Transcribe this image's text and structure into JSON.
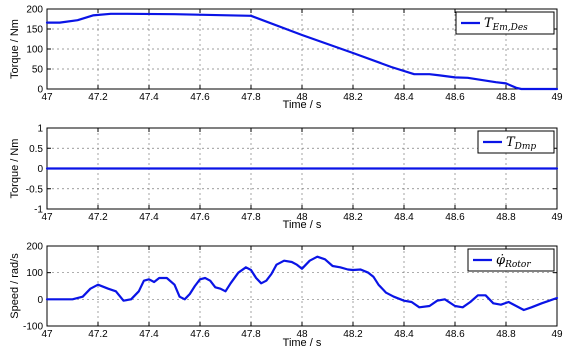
{
  "chart_data": [
    {
      "type": "line",
      "xlabel": "Time / s",
      "ylabel": "Torque / Nm",
      "xlim": [
        47,
        49
      ],
      "ylim": [
        0,
        200
      ],
      "xticks": [
        "47",
        "47.2",
        "47.4",
        "47.6",
        "47.8",
        "48",
        "48.2",
        "48.4",
        "48.6",
        "48.8",
        "49"
      ],
      "yticks": [
        "0",
        "50",
        "100",
        "150",
        "200"
      ],
      "grid": true,
      "legend_position": "top-right",
      "series": [
        {
          "name": "T",
          "name_subscript": "Em,Des",
          "color": "#0a14e6",
          "x": [
            47.0,
            47.05,
            47.12,
            47.18,
            47.25,
            47.3,
            47.5,
            47.8,
            48.0,
            48.2,
            48.35,
            48.44,
            48.5,
            48.54,
            48.6,
            48.65,
            48.7,
            48.76,
            48.8,
            48.84,
            48.86,
            49.0
          ],
          "y": [
            166,
            166,
            172,
            184,
            188,
            188,
            187,
            183,
            135,
            90,
            55,
            37,
            37,
            34,
            29,
            28,
            23,
            17,
            14,
            3,
            0,
            0
          ]
        }
      ]
    },
    {
      "type": "line",
      "xlabel": "Time / s",
      "ylabel": "Torque / Nm",
      "xlim": [
        47,
        49
      ],
      "ylim": [
        -1,
        1
      ],
      "xticks": [
        "47",
        "47.2",
        "47.4",
        "47.6",
        "47.8",
        "48",
        "48.2",
        "48.4",
        "48.6",
        "48.8",
        "49"
      ],
      "yticks": [
        "-1",
        "-0.5",
        "0",
        "0.5",
        "1"
      ],
      "grid": true,
      "legend_position": "top-right",
      "series": [
        {
          "name": "T",
          "name_subscript": "Dmp",
          "color": "#0a14e6",
          "x": [
            47.0,
            49.0
          ],
          "y": [
            0,
            0
          ]
        }
      ]
    },
    {
      "type": "line",
      "xlabel": "Time / s",
      "ylabel": "Speed / rad/s",
      "xlim": [
        47,
        49
      ],
      "ylim": [
        -100,
        200
      ],
      "xticks": [
        "47",
        "47.2",
        "47.4",
        "47.6",
        "47.8",
        "48",
        "48.2",
        "48.4",
        "48.6",
        "48.8",
        "49"
      ],
      "yticks": [
        "-100",
        "0",
        "100",
        "200"
      ],
      "grid": true,
      "legend_position": "top-right",
      "series": [
        {
          "name": "φ̇",
          "name_subscript": "Rotor",
          "color": "#0a14e6",
          "x": [
            47.0,
            47.1,
            47.14,
            47.17,
            47.2,
            47.24,
            47.27,
            47.3,
            47.33,
            47.36,
            47.38,
            47.4,
            47.42,
            47.44,
            47.47,
            47.5,
            47.52,
            47.54,
            47.56,
            47.58,
            47.6,
            47.62,
            47.64,
            47.66,
            47.68,
            47.7,
            47.72,
            47.75,
            47.78,
            47.8,
            47.82,
            47.84,
            47.86,
            47.88,
            47.9,
            47.93,
            47.96,
            47.98,
            48.0,
            48.03,
            48.06,
            48.09,
            48.12,
            48.15,
            48.18,
            48.2,
            48.23,
            48.26,
            48.28,
            48.3,
            48.33,
            48.36,
            48.4,
            48.43,
            48.46,
            48.5,
            48.53,
            48.56,
            48.6,
            48.63,
            48.66,
            48.69,
            48.72,
            48.75,
            48.78,
            48.81,
            48.84,
            48.87,
            48.9,
            48.94,
            48.97,
            49.0
          ],
          "y": [
            0,
            0,
            10,
            40,
            55,
            40,
            30,
            -5,
            0,
            30,
            70,
            75,
            65,
            80,
            80,
            55,
            10,
            0,
            20,
            50,
            75,
            80,
            70,
            45,
            40,
            30,
            60,
            100,
            120,
            110,
            80,
            60,
            70,
            95,
            130,
            145,
            140,
            130,
            115,
            145,
            160,
            150,
            125,
            120,
            112,
            110,
            112,
            100,
            85,
            55,
            25,
            10,
            -5,
            -10,
            -30,
            -25,
            -5,
            0,
            -25,
            -30,
            -10,
            15,
            15,
            -15,
            -20,
            -10,
            -25,
            -40,
            -30,
            -15,
            -5,
            5
          ]
        }
      ]
    }
  ]
}
